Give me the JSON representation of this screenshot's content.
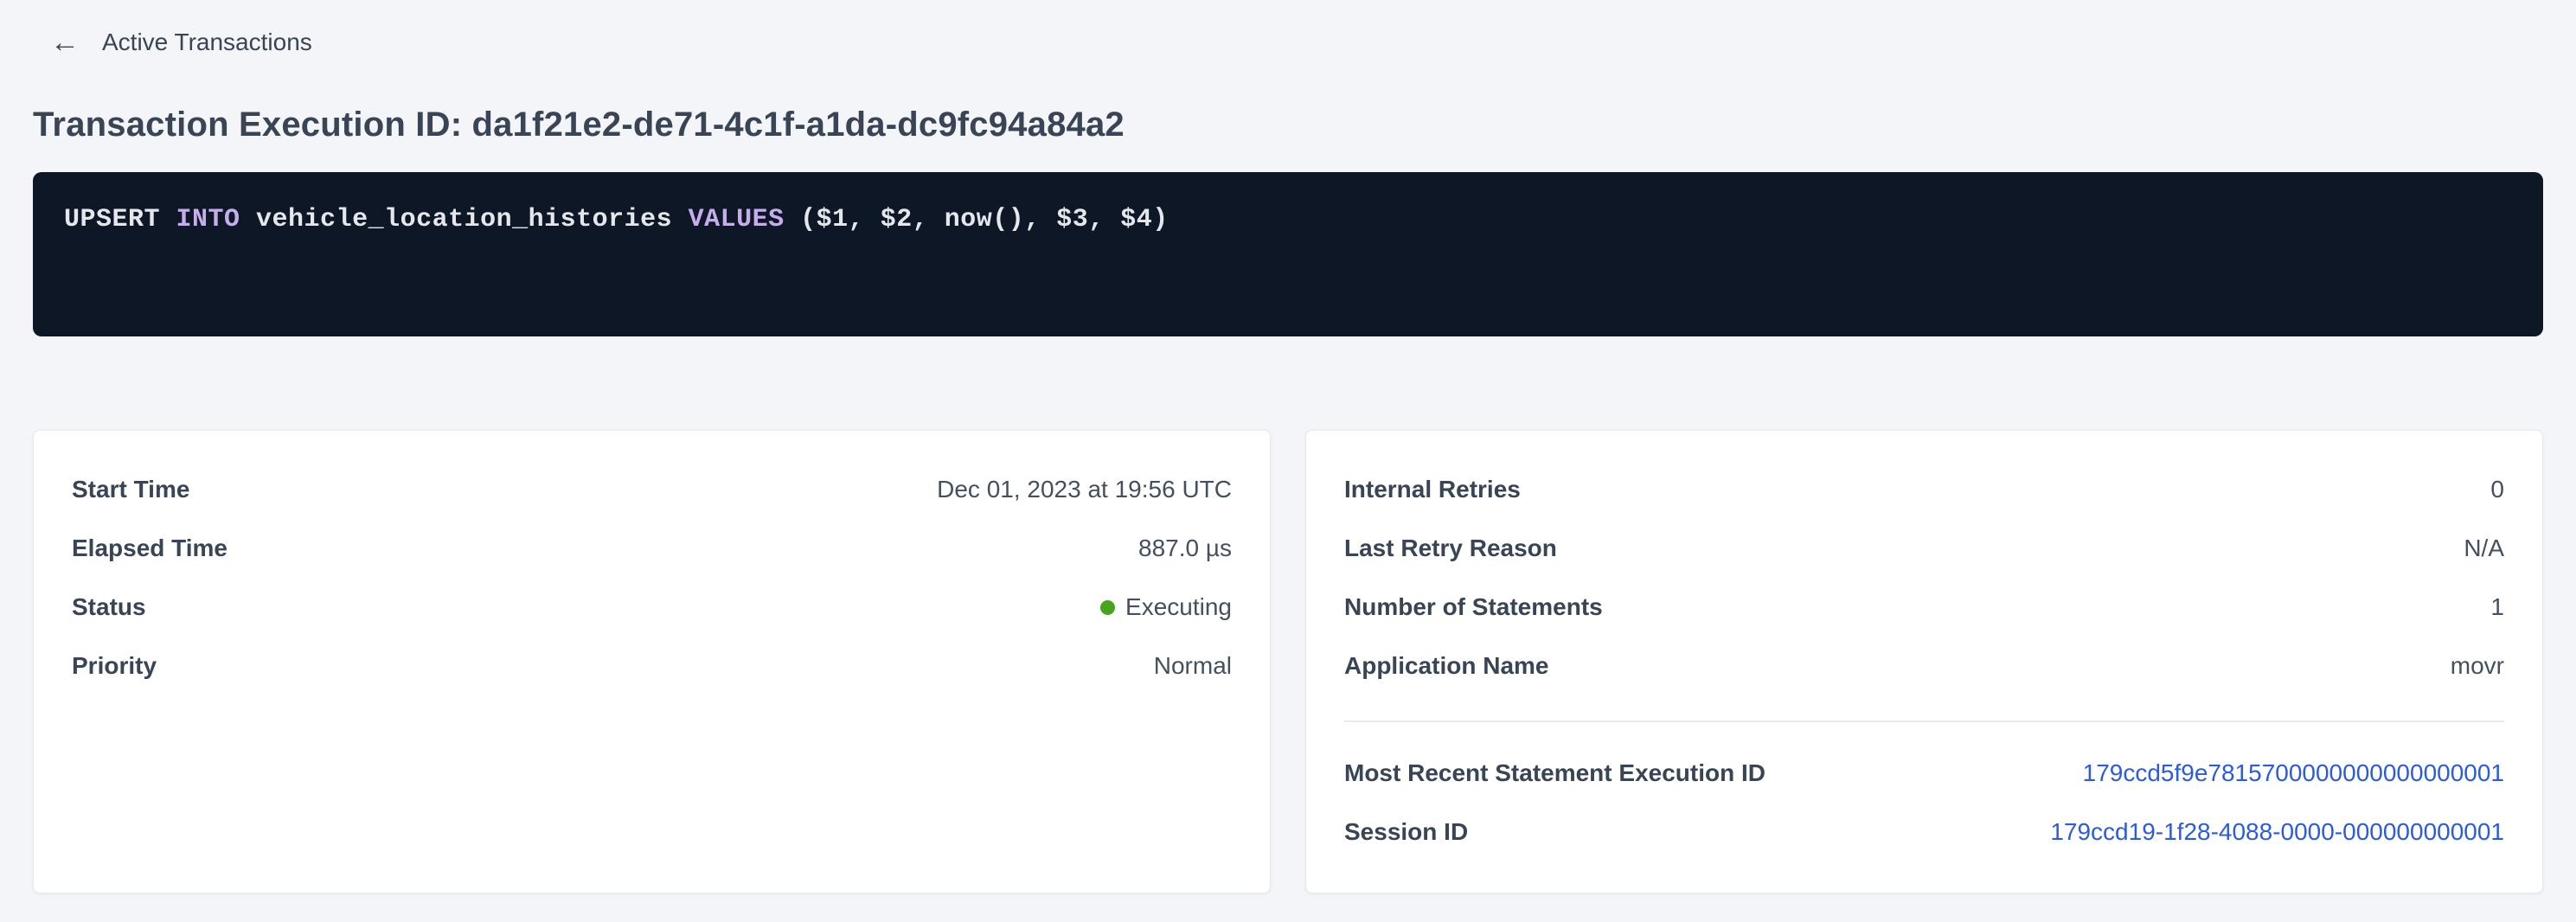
{
  "colors": {
    "page_bg": "#f4f5f9",
    "card_bg": "#ffffff",
    "title_text": "#394455",
    "value_text": "#44505f",
    "code_bg": "#0d1726",
    "code_text": "#e4e7ec",
    "code_keyword": "#c5aeea",
    "link_blue": "#2c5bdb",
    "status_green": "#46a41e"
  },
  "header": {
    "back_icon": "arrow-left",
    "back_label": "Active Transactions",
    "title": "Transaction Execution ID: da1f21e2-de71-4c1f-a1da-dc9fc94a84a2"
  },
  "sql": {
    "tokens": [
      {
        "text": "UPSERT ",
        "style": "plain"
      },
      {
        "text": "INTO",
        "style": "keyword"
      },
      {
        "text": " vehicle_location_histories ",
        "style": "plain"
      },
      {
        "text": "VALUES",
        "style": "keyword"
      },
      {
        "text": " ($1, $2, now(), $3, $4)",
        "style": "plain"
      }
    ]
  },
  "left_card": {
    "rows": [
      {
        "label": "Start Time",
        "value": "Dec 01, 2023 at 19:56 UTC"
      },
      {
        "label": "Elapsed Time",
        "value": "887.0 µs"
      },
      {
        "label": "Status",
        "value": "Executing"
      },
      {
        "label": "Priority",
        "value": "Normal"
      }
    ]
  },
  "right_card": {
    "rows": [
      {
        "label": "Internal Retries",
        "value": "0"
      },
      {
        "label": "Last Retry Reason",
        "value": "N/A"
      },
      {
        "label": "Number of Statements",
        "value": "1"
      },
      {
        "label": "Application Name",
        "value": "movr"
      }
    ],
    "link_rows": [
      {
        "label": "Most Recent Statement Execution ID",
        "value": "179ccd5f9e7815700000000000000001"
      },
      {
        "label": "Session ID",
        "value": "179ccd19-1f28-4088-0000-000000000001"
      }
    ]
  }
}
